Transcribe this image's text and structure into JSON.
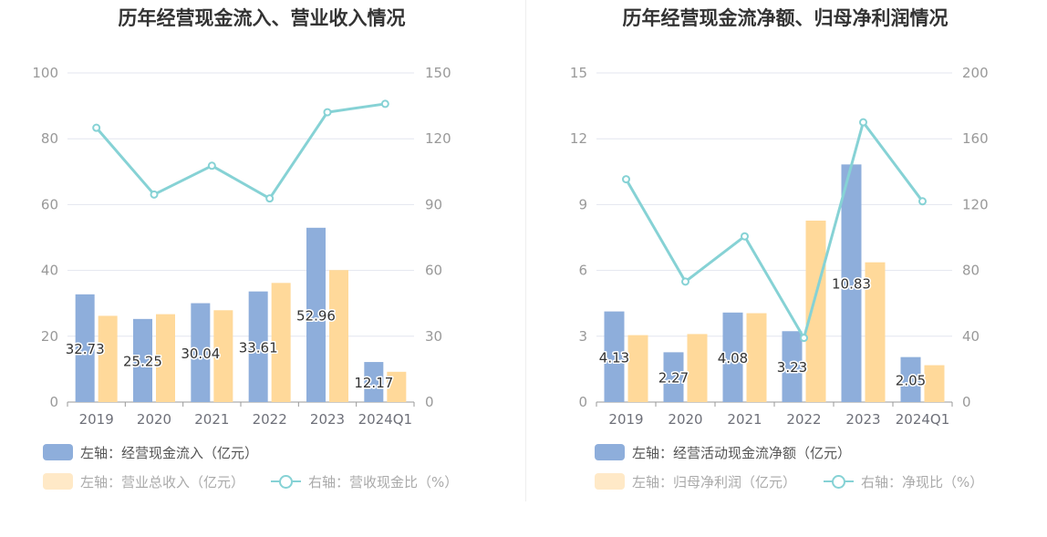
{
  "colors": {
    "bar_primary": "#8eaedb",
    "bar_secondary": "#ffd99a",
    "bar_secondary_legend": "#ffe9c7",
    "line": "#86d2d5",
    "grid": "#e3e6ef",
    "axis": "#999999"
  },
  "legend_icons": [
    "bar-swatch-blue",
    "bar-swatch-orange",
    "line-circle-teal"
  ],
  "chart_data": [
    {
      "type": "bar",
      "title": "历年经营现金流入、营业收入情况",
      "categories": [
        "2019",
        "2020",
        "2021",
        "2022",
        "2023",
        "2024Q1"
      ],
      "left_axis": {
        "ticks": [
          "0",
          "20",
          "40",
          "60",
          "80",
          "100"
        ],
        "ylim": [
          0,
          100
        ]
      },
      "right_axis": {
        "ticks": [
          "0",
          "30",
          "60",
          "90",
          "120",
          "150"
        ],
        "ylim": [
          0,
          150
        ]
      },
      "grid": true,
      "legend_position": "bottom-left",
      "series": [
        {
          "name": "左轴：经营现金流入（亿元）",
          "type": "bar",
          "axis": "left",
          "values": [
            32.73,
            25.25,
            30.04,
            33.61,
            52.96,
            12.17
          ],
          "labels": [
            "32.73",
            "25.25",
            "30.04",
            "33.61",
            "52.96",
            "12.17"
          ]
        },
        {
          "name": "左轴：营业总收入（亿元）",
          "type": "bar",
          "axis": "left",
          "values": [
            26.2,
            26.7,
            27.9,
            36.2,
            40.1,
            9.2
          ]
        },
        {
          "name": "右轴：营收现金比（%）",
          "type": "line",
          "axis": "right",
          "values": [
            125,
            94.6,
            107.7,
            92.8,
            132.1,
            135.9
          ]
        }
      ]
    },
    {
      "type": "bar",
      "title": "历年经营现金流净额、归母净利润情况",
      "categories": [
        "2019",
        "2020",
        "2021",
        "2022",
        "2023",
        "2024Q1"
      ],
      "left_axis": {
        "ticks": [
          "0",
          "3",
          "6",
          "9",
          "12",
          "15"
        ],
        "ylim": [
          0,
          15
        ]
      },
      "right_axis": {
        "ticks": [
          "0",
          "40",
          "80",
          "120",
          "160",
          "200"
        ],
        "ylim": [
          0,
          200
        ]
      },
      "grid": true,
      "legend_position": "bottom-left",
      "series": [
        {
          "name": "左轴：经营活动现金流净额（亿元）",
          "type": "bar",
          "axis": "left",
          "values": [
            4.13,
            2.27,
            4.08,
            3.23,
            10.83,
            2.05
          ],
          "labels": [
            "4.13",
            "2.27",
            "4.08",
            "3.23",
            "10.83",
            "2.05"
          ]
        },
        {
          "name": "左轴：归母净利润（亿元）",
          "type": "bar",
          "axis": "left",
          "values": [
            3.05,
            3.1,
            4.05,
            8.27,
            6.37,
            1.68
          ]
        },
        {
          "name": "右轴：净现比（%）",
          "type": "line",
          "axis": "right",
          "values": [
            135.4,
            73.2,
            100.7,
            39,
            170,
            122
          ]
        }
      ]
    }
  ]
}
